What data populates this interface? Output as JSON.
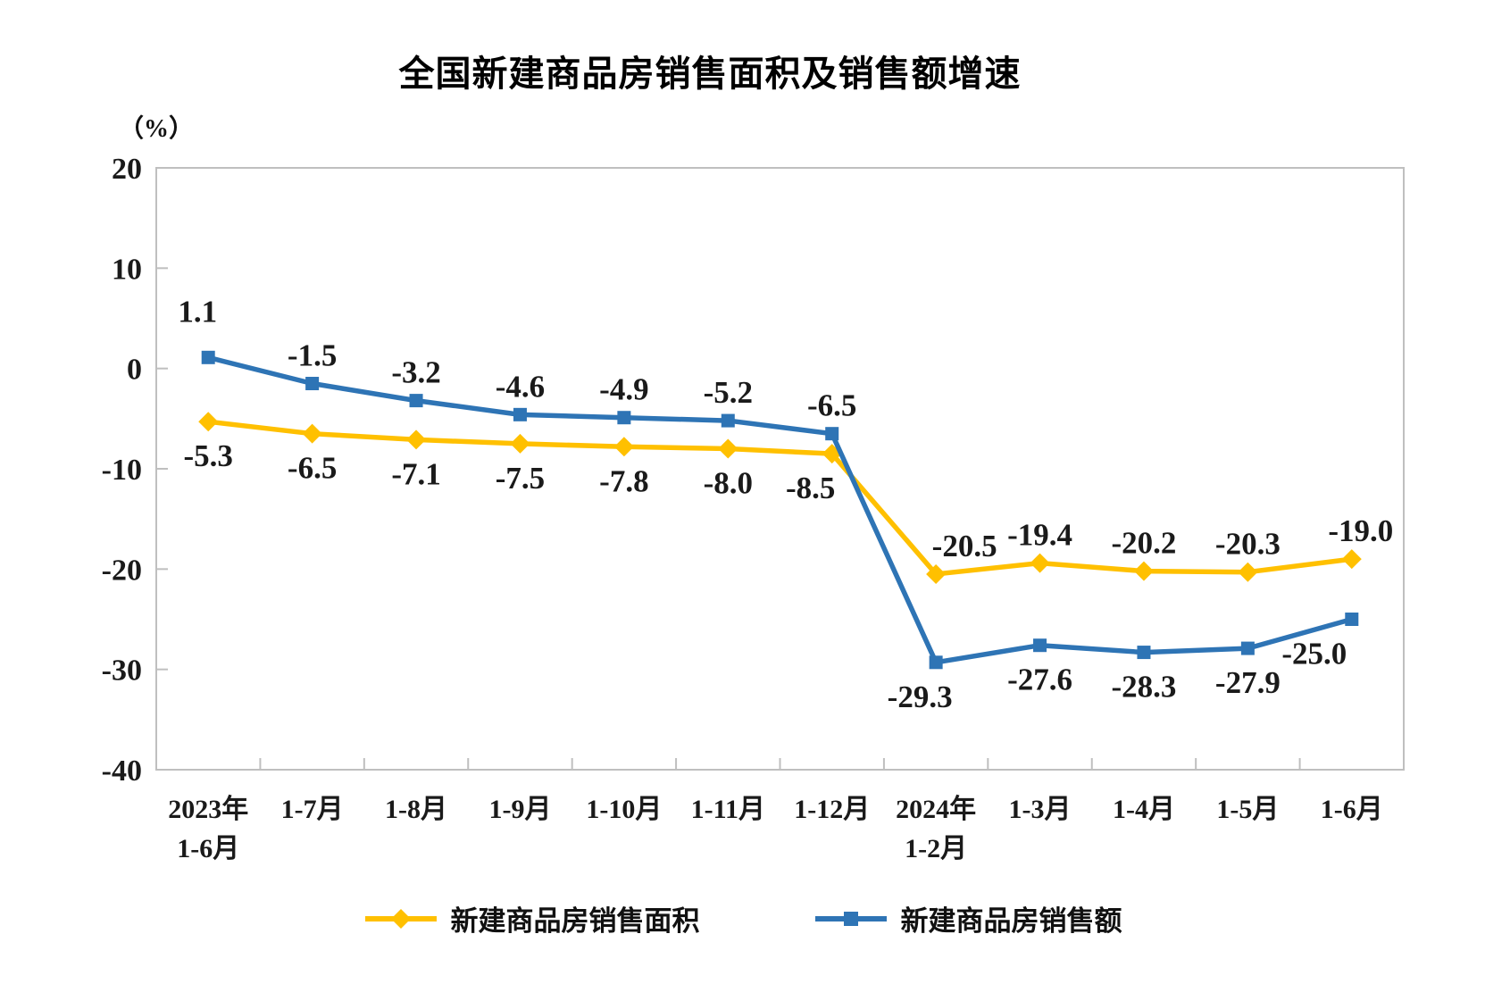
{
  "chart_data": {
    "type": "line",
    "title": "全国新建商品房销售面积及销售额增速",
    "unit_label": "（%）",
    "categories": [
      [
        "2023年",
        "1-6月"
      ],
      [
        "1-7月"
      ],
      [
        "1-8月"
      ],
      [
        "1-9月"
      ],
      [
        "1-10月"
      ],
      [
        "1-11月"
      ],
      [
        "1-12月"
      ],
      [
        "2024年",
        "1-2月"
      ],
      [
        "1-3月"
      ],
      [
        "1-4月"
      ],
      [
        "1-5月"
      ],
      [
        "1-6月"
      ]
    ],
    "y_axis": {
      "min": -40,
      "max": 20,
      "step": 10,
      "tick_labels": [
        "20",
        "10",
        "0",
        "-10",
        "-20",
        "-30",
        "-40"
      ]
    },
    "grid": false,
    "legend_position": "bottom",
    "colors": {
      "axis": "#BFBFBF",
      "label_text": "#1A1A1A"
    },
    "series": [
      {
        "name": "新建商品房销售面积",
        "color": "#FFC000",
        "marker": "diamond",
        "values": [
          -5.3,
          -6.5,
          -7.1,
          -7.5,
          -7.8,
          -8.0,
          -8.5,
          -20.5,
          -19.4,
          -20.2,
          -20.3,
          -19.0
        ],
        "labels": [
          "-5.3",
          "-6.5",
          "-7.1",
          "-7.5",
          "-7.8",
          "-8.0",
          "-8.5",
          "-20.5",
          "-19.4",
          "-20.2",
          "-20.3",
          "-19.0"
        ],
        "label_sides": [
          "below",
          "below",
          "below",
          "below",
          "below",
          "below",
          "below",
          "above",
          "above",
          "above",
          "above",
          "above"
        ],
        "label_dx": {
          "6": -24,
          "7": 32,
          "11": 10
        }
      },
      {
        "name": "新建商品房销售额",
        "color": "#2E74B5",
        "marker": "square",
        "values": [
          1.1,
          -1.5,
          -3.2,
          -4.6,
          -4.9,
          -5.2,
          -6.5,
          -29.3,
          -27.6,
          -28.3,
          -27.9,
          -25.0
        ],
        "labels": [
          "1.1",
          "-1.5",
          "-3.2",
          "-4.6",
          "-4.9",
          "-5.2",
          "-6.5",
          "-29.3",
          "-27.6",
          "-28.3",
          "-27.9",
          "-25.0"
        ],
        "label_sides": [
          "above",
          "above",
          "above",
          "above",
          "above",
          "above",
          "above",
          "below",
          "below",
          "below",
          "below",
          "below"
        ],
        "label_dx": {
          "0": -12,
          "7": -18,
          "11": -42
        },
        "label_dy": {
          "0": -20
        }
      }
    ]
  }
}
